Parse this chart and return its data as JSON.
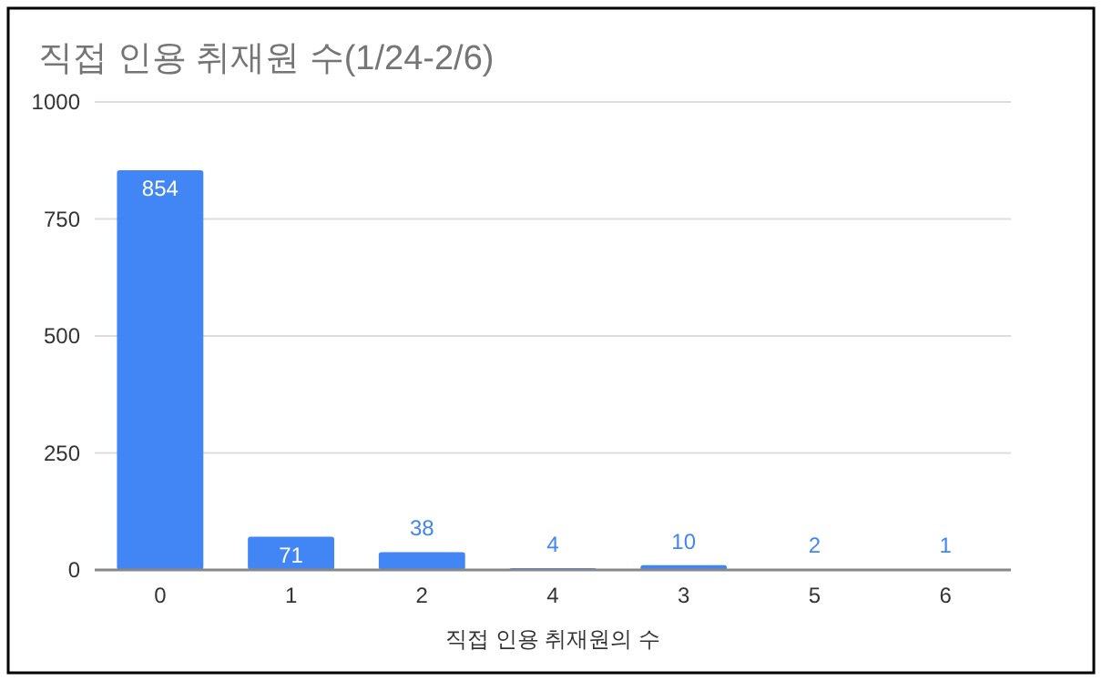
{
  "chart_data": {
    "type": "bar",
    "title": "직접 인용 취재원 수(1/24-2/6)",
    "xlabel": "직접 인용 취재원의 수",
    "categories": [
      "0",
      "1",
      "2",
      "4",
      "3",
      "5",
      "6"
    ],
    "values": [
      854,
      71,
      38,
      4,
      10,
      2,
      1
    ],
    "color": "#4285f4",
    "ylim": [
      0,
      1000
    ],
    "yticks": [
      0,
      250,
      500,
      750,
      1000
    ],
    "grid": "y",
    "data_labels": true
  }
}
